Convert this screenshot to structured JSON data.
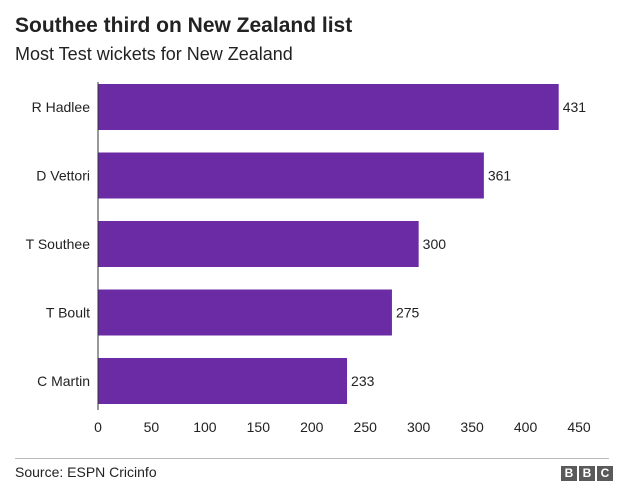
{
  "chart_data": {
    "type": "bar",
    "orientation": "horizontal",
    "title": "Southee third on New Zealand list",
    "subtitle": "Most Test wickets for New Zealand",
    "categories": [
      "R Hadlee",
      "D Vettori",
      "T Southee",
      "T Boult",
      "C Martin"
    ],
    "values": [
      431,
      361,
      300,
      275,
      233
    ],
    "xlim": [
      0,
      450
    ],
    "xticks": [
      0,
      50,
      100,
      150,
      200,
      250,
      300,
      350,
      400,
      450
    ],
    "grid": false,
    "bar_color": "#6a2ba5",
    "data_labels": true
  },
  "footer": {
    "source": "Source: ESPN Cricinfo",
    "logo": [
      "B",
      "B",
      "C"
    ]
  }
}
